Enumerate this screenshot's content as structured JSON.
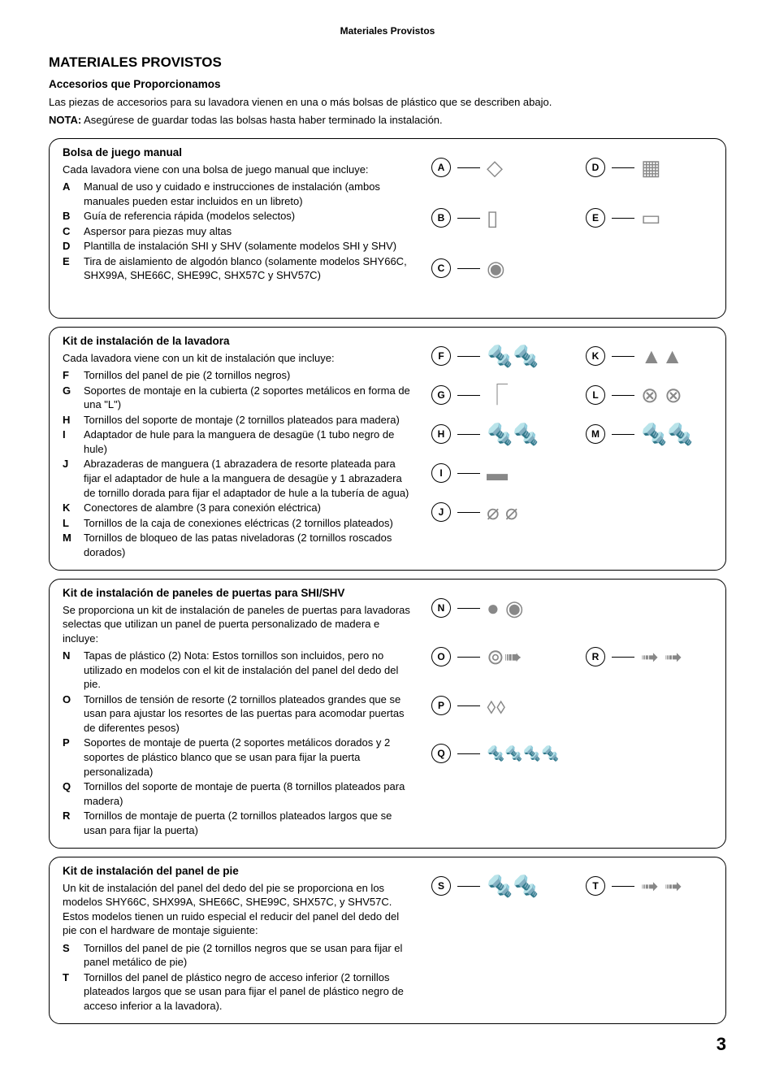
{
  "header": "Materiales Provistos",
  "main_title": "MATERIALES PROVISTOS",
  "subtitle": "Accesorios que Proporcionamos",
  "intro": "Las piezas de accesorios para su lavadora vienen en una o más bolsas de plástico que se describen abajo.",
  "nota_label": "NOTA:",
  "nota": " Asegúrese de guardar todas las bolsas hasta haber terminado la instalación.",
  "page_number": "3",
  "sections": [
    {
      "title": "Bolsa de juego manual",
      "intro": "Cada lavadora viene con una bolsa de juego manual que incluye:",
      "items": [
        {
          "l": "A",
          "d": "Manual de uso y cuidado e instrucciones de instalación (ambos manuales pueden estar incluidos en un libreto)"
        },
        {
          "l": "B",
          "d": "Guía de referencia rápida (modelos selectos)"
        },
        {
          "l": "C",
          "d": "Aspersor para piezas muy altas"
        },
        {
          "l": "D",
          "d": "Plantilla de instalación SHI y SHV (solamente modelos SHI y SHV)"
        },
        {
          "l": "E",
          "d": "Tira de aislamiento de algodón blanco (solamente modelos SHY66C, SHX99A, SHE66C, SHE99C, SHX57C y SHV57C)"
        }
      ],
      "badges_left": [
        "A",
        "B",
        "C"
      ],
      "badges_right": [
        "D",
        "E"
      ],
      "glyphs_left": [
        "◇",
        "▯",
        "◉"
      ],
      "glyphs_right": [
        "▦",
        "▭"
      ]
    },
    {
      "title": "Kit de instalación de la lavadora",
      "intro": "Cada lavadora viene con un kit de instalación que incluye:",
      "items": [
        {
          "l": "F",
          "d": "Tornillos del panel de pie (2 tornillos negros)"
        },
        {
          "l": "G",
          "d": "Soportes de montaje en la cubierta (2 soportes metálicos en forma de una \"L\")"
        },
        {
          "l": "H",
          "d": "Tornillos del soporte de montaje (2 tornillos plateados para madera)"
        },
        {
          "l": "I",
          "d": "Adaptador de hule para la manguera de desagüe (1 tubo negro de hule)"
        },
        {
          "l": "J",
          "d": "Abrazaderas de manguera (1 abrazadera de resorte plateada para fijar el adaptador de hule a la manguera de desagüe y 1 abrazadera de tornillo dorada para fijar el adaptador de hule a la tubería de agua)"
        },
        {
          "l": "K",
          "d": "Conectores de alambre (3 para conexión eléctrica)"
        },
        {
          "l": "L",
          "d": "Tornillos de la caja de conexiones eléctricas (2 tornillos plateados)"
        },
        {
          "l": "M",
          "d": "Tornillos de bloqueo de las patas niveladoras (2 tornillos roscados dorados)"
        }
      ],
      "badges_left": [
        "F",
        "G",
        "H",
        "I",
        "J"
      ],
      "badges_right": [
        "K",
        "L",
        "M"
      ],
      "glyphs_left": [
        "🔩🔩",
        "⎾",
        "🔩🔩",
        "▬",
        "⌀ ⌀"
      ],
      "glyphs_right": [
        "▲▲",
        "⊗ ⊗",
        "🔩🔩"
      ]
    },
    {
      "title": "Kit de instalación de paneles de puertas para SHI/SHV",
      "intro": "Se proporciona un kit de instalación de paneles de puertas para lavadoras selectas que utilizan un panel de puerta personalizado de madera e incluye:",
      "items": [
        {
          "l": "N",
          "d": "Tapas de plástico (2) Nota: Estos tornillos son incluidos, pero no utilizado en modelos con el kit de instalación del panel del dedo del pie."
        },
        {
          "l": "O",
          "d": "Tornillos de tensión de resorte (2 tornillos plateados grandes que se usan para ajustar los resortes de las puertas para acomodar puertas de diferentes pesos)"
        },
        {
          "l": "P",
          "d": "Soportes de montaje de puerta (2 soportes metálicos dorados y 2 soportes de plástico blanco que se usan para fijar la puerta personalizada)"
        },
        {
          "l": "Q",
          "d": "Tornillos del soporte de montaje de puerta (8 tornillos plateados para madera)"
        },
        {
          "l": "R",
          "d": "Tornillos de montaje de puerta (2 tornillos plateados largos que se usan para fijar la puerta)"
        }
      ],
      "badges_left": [
        "N",
        "O",
        "P",
        "Q"
      ],
      "badges_right": [
        "R"
      ],
      "glyphs_left": [
        "● ◉",
        "⊚➠",
        "⬨⬨",
        "🔩🔩🔩🔩"
      ],
      "glyphs_right": [
        "➟ ➟"
      ]
    },
    {
      "title": "Kit de instalación del panel de pie",
      "intro": "Un kit de instalación del panel del dedo del pie se proporciona en los modelos SHY66C, SHX99A, SHE66C, SHE99C, SHX57C, y SHV57C. Estos modelos tienen un ruido especial el reducir del panel del dedo del pie con el hardware de montaje siguiente:",
      "items": [
        {
          "l": "S",
          "d": "Tornillos del panel de pie (2 tornillos negros que se usan para fijar el panel metálico de pie)"
        },
        {
          "l": "T",
          "d": "Tornillos del panel de plástico negro de acceso inferior (2 tornillos plateados largos que se usan para fijar el panel de plástico negro de acceso inferior a la lavadora)."
        }
      ],
      "badges_left": [
        "S"
      ],
      "badges_right": [
        "T"
      ],
      "glyphs_left": [
        "🔩🔩"
      ],
      "glyphs_right": [
        "➟ ➟"
      ]
    }
  ]
}
